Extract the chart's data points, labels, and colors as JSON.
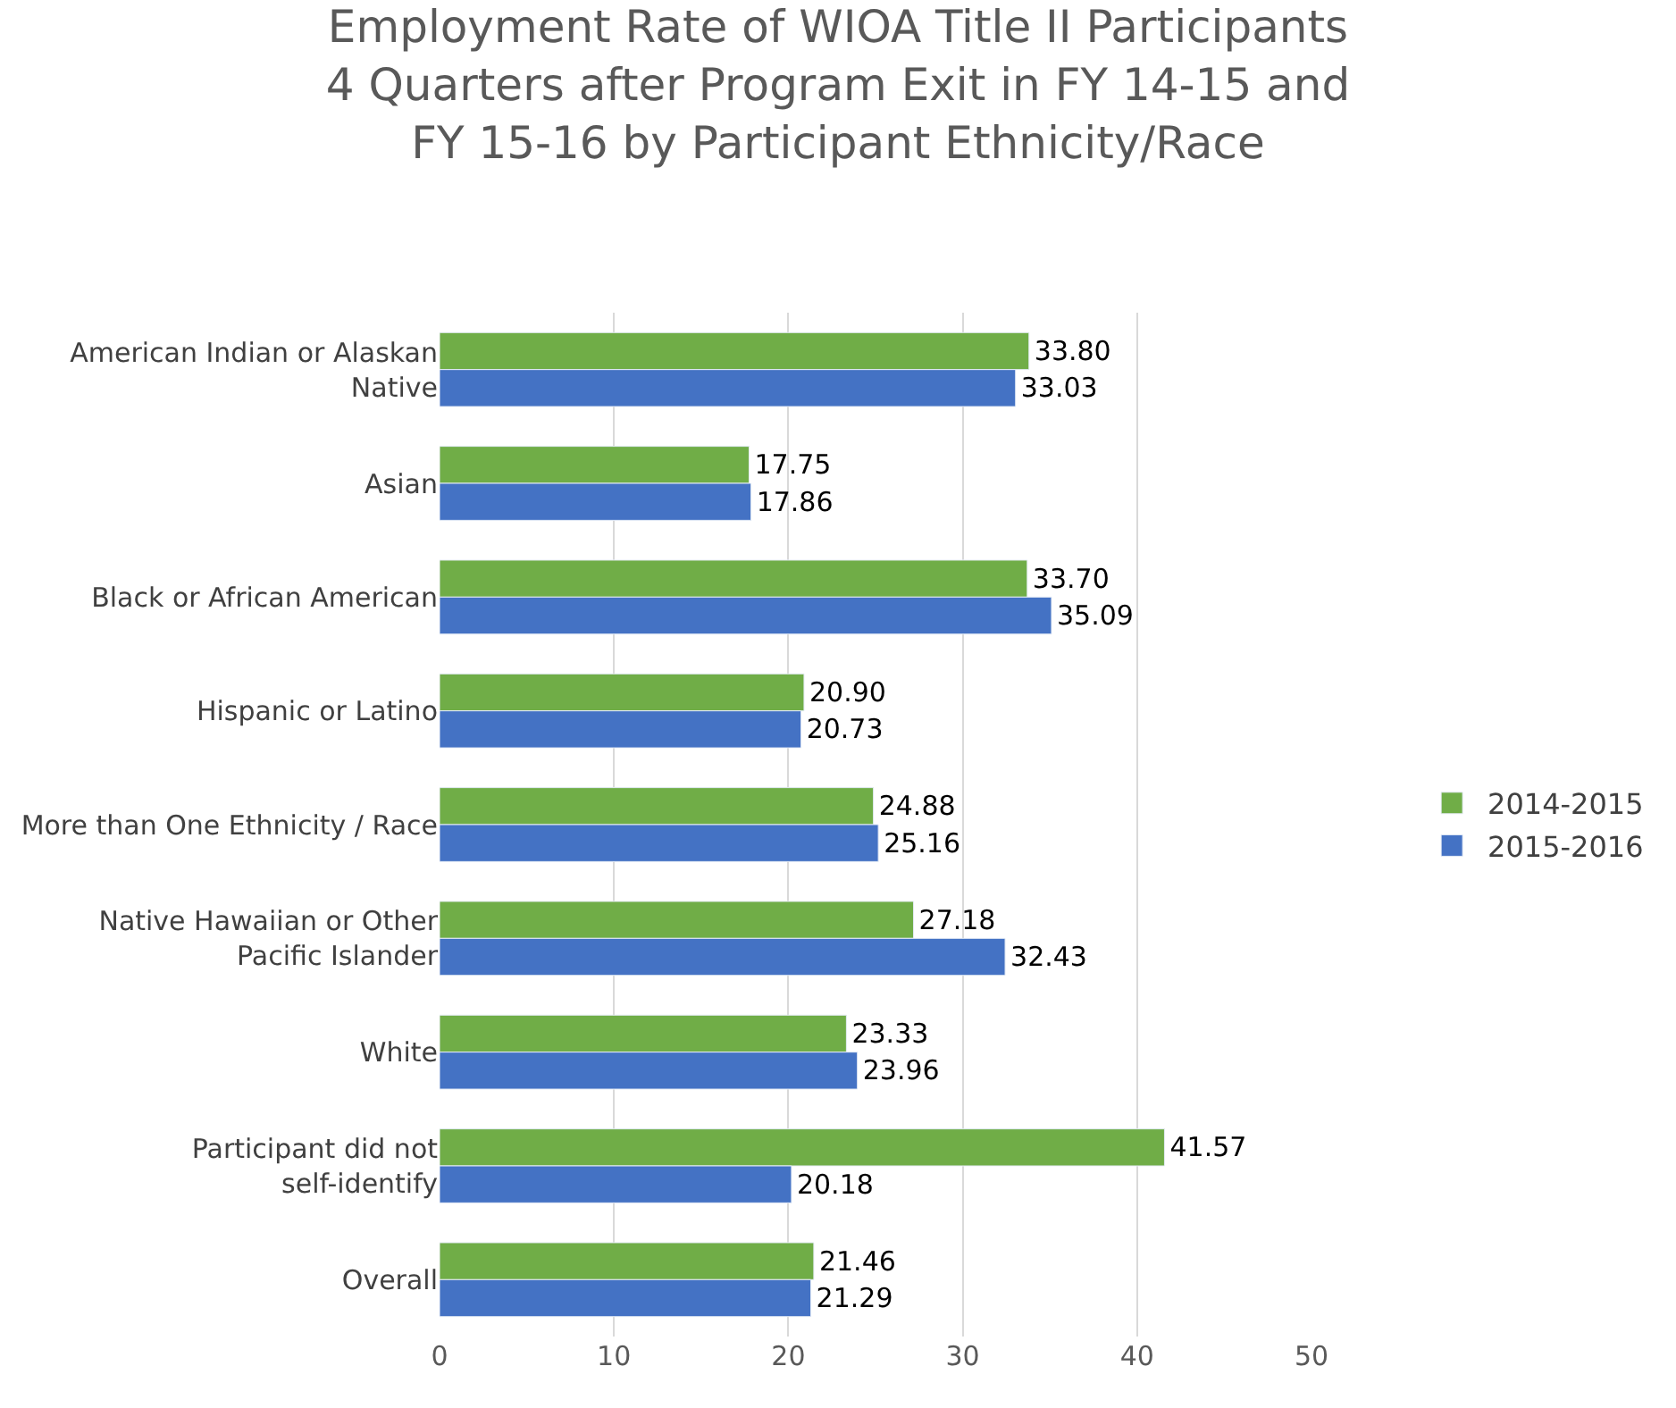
{
  "chart_data": {
    "type": "bar",
    "orientation": "horizontal",
    "title": "Employment Rate of WIOA Title II Participants 4 Quarters after Program Exit in FY 14-15 and FY 15-16 by Participant Ethnicity/Race",
    "categories": [
      "American Indian or Alaskan Native",
      "Asian",
      "Black or African American",
      "Hispanic or Latino",
      "More than One Ethnicity / Race",
      "Native Hawaiian or Other Pacific Islander",
      "White",
      "Participant did not self-identify",
      "Overall"
    ],
    "series": [
      {
        "name": "2014-2015",
        "color": "#70ad47",
        "values": [
          33.8,
          17.75,
          33.7,
          20.9,
          24.88,
          27.18,
          23.33,
          41.57,
          21.46
        ],
        "value_labels": [
          "33.80",
          "17.75",
          "33.70",
          "20.90",
          "24.88",
          "27.18",
          "23.33",
          "41.57",
          "21.46"
        ]
      },
      {
        "name": "2015-2016",
        "color": "#4472c4",
        "values": [
          33.03,
          17.86,
          35.09,
          20.73,
          25.16,
          32.43,
          23.96,
          20.18,
          21.29
        ],
        "value_labels": [
          "33.03",
          "17.86",
          "35.09",
          "20.73",
          "25.16",
          "32.43",
          "23.96",
          "20.18",
          "21.29"
        ]
      }
    ],
    "xlim": [
      0,
      50
    ],
    "xticks": [
      0,
      10,
      20,
      30,
      40,
      50
    ],
    "grid": "x",
    "legend": "right"
  }
}
